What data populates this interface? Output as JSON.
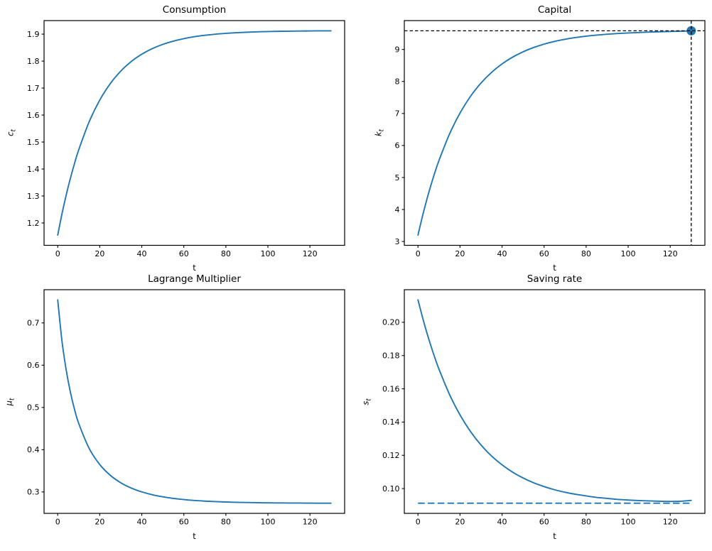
{
  "figure": {
    "background": "#ffffff",
    "layout": "2x2 subplot grid"
  },
  "colors": {
    "line": "#1f77b4",
    "dashed_black": "#000000",
    "text": "#000000",
    "spine": "#000000"
  },
  "chart_data": [
    {
      "id": "consumption",
      "type": "line",
      "title": "Consumption",
      "xlabel": "t",
      "ylabel_main": "c",
      "ylabel_sub": "t",
      "xlim": [
        -6.5,
        136.5
      ],
      "ylim": [
        1.1171,
        1.9502
      ],
      "xticks": [
        0,
        20,
        40,
        60,
        80,
        100,
        120
      ],
      "xtick_labels": [
        "0",
        "20",
        "40",
        "60",
        "80",
        "100",
        "120"
      ],
      "yticks": [
        1.2,
        1.3,
        1.4,
        1.5,
        1.6,
        1.7,
        1.8,
        1.9
      ],
      "ytick_labels": [
        "1.2",
        "1.3",
        "1.4",
        "1.5",
        "1.6",
        "1.7",
        "1.8",
        "1.9"
      ],
      "line_color": "#1f77b4",
      "x": [
        0,
        2,
        4,
        6,
        8,
        10,
        15,
        20,
        25,
        30,
        35,
        40,
        45,
        50,
        55,
        60,
        65,
        70,
        75,
        80,
        85,
        90,
        95,
        100,
        105,
        110,
        115,
        120,
        125,
        130
      ],
      "y": [
        1.155,
        1.2326,
        1.3023,
        1.3648,
        1.4209,
        1.4713,
        1.5758,
        1.6556,
        1.7165,
        1.763,
        1.7985,
        1.8256,
        1.8463,
        1.8621,
        1.8741,
        1.8833,
        1.8904,
        1.8957,
        1.8998,
        1.9029,
        1.9053,
        1.9071,
        1.9085,
        1.9096,
        1.9104,
        1.911,
        1.9115,
        1.9118,
        1.9121,
        1.9123
      ]
    },
    {
      "id": "capital",
      "type": "line",
      "title": "Capital",
      "xlabel": "t",
      "ylabel_main": "k",
      "ylabel_sub": "t",
      "xlim": [
        -6.5,
        136.5
      ],
      "ylim": [
        2.8809,
        9.9011
      ],
      "xticks": [
        0,
        20,
        40,
        60,
        80,
        100,
        120
      ],
      "xtick_labels": [
        "0",
        "20",
        "40",
        "60",
        "80",
        "100",
        "120"
      ],
      "yticks": [
        3,
        4,
        5,
        6,
        7,
        8,
        9
      ],
      "ytick_labels": [
        "3",
        "4",
        "5",
        "6",
        "7",
        "8",
        "9"
      ],
      "line_color": "#1f77b4",
      "x": [
        0,
        2,
        4,
        6,
        8,
        10,
        15,
        20,
        25,
        30,
        35,
        40,
        45,
        50,
        55,
        60,
        65,
        70,
        75,
        80,
        85,
        90,
        95,
        100,
        105,
        110,
        115,
        120,
        125,
        130
      ],
      "y": [
        3.2,
        3.7554,
        4.2627,
        4.7252,
        5.1477,
        5.5333,
        6.3573,
        7.0132,
        7.5359,
        7.952,
        8.2839,
        8.5481,
        8.7587,
        8.9259,
        9.0593,
        9.1659,
        9.2508,
        9.3178,
        9.372,
        9.4148,
        9.4486,
        9.4761,
        9.4971,
        9.5143,
        9.528,
        9.541,
        9.552,
        9.561,
        9.569,
        9.576
      ],
      "hline": {
        "y": 9.582,
        "color": "#000000",
        "style": "dashed",
        "span": "full",
        "z": "above"
      },
      "vline": {
        "x": 130,
        "color": "#000000",
        "style": "dashed",
        "span": "full",
        "z": "above"
      },
      "marker": {
        "x": 130,
        "y": 9.582,
        "color": "#1f77b4",
        "shape": "circle",
        "radius_px": 6.5
      }
    },
    {
      "id": "lagrange-multiplier",
      "type": "line",
      "title": "Lagrange Multiplier",
      "xlabel": "t",
      "ylabel_main": "μ",
      "ylabel_sub": "t",
      "xlim": [
        -6.5,
        136.5
      ],
      "ylim": [
        0.2493,
        0.7786
      ],
      "xticks": [
        0,
        20,
        40,
        60,
        80,
        100,
        120
      ],
      "xtick_labels": [
        "0",
        "20",
        "40",
        "60",
        "80",
        "100",
        "120"
      ],
      "yticks": [
        0.3,
        0.4,
        0.5,
        0.6,
        0.7
      ],
      "ytick_labels": [
        "0.3",
        "0.4",
        "0.5",
        "0.6",
        "0.7"
      ],
      "line_color": "#1f77b4",
      "x": [
        0,
        2,
        4,
        6,
        8,
        10,
        15,
        20,
        25,
        30,
        35,
        40,
        45,
        50,
        55,
        60,
        65,
        70,
        75,
        80,
        85,
        90,
        95,
        100,
        105,
        110,
        115,
        120,
        125,
        130
      ],
      "y": [
        0.7545,
        0.6582,
        0.5897,
        0.5368,
        0.4953,
        0.462,
        0.4027,
        0.3648,
        0.3394,
        0.3217,
        0.3092,
        0.3001,
        0.2933,
        0.2884,
        0.2847,
        0.282,
        0.2798,
        0.2783,
        0.2771,
        0.2762,
        0.2755,
        0.275,
        0.2746,
        0.2742,
        0.274,
        0.2738,
        0.2737,
        0.2735,
        0.2734,
        0.2734
      ]
    },
    {
      "id": "saving-rate",
      "type": "line",
      "title": "Saving rate",
      "xlabel": "t",
      "ylabel_main": "s",
      "ylabel_sub": "t",
      "xlim": [
        -6.5,
        136.5
      ],
      "ylim": [
        0.0851,
        0.2196
      ],
      "xticks": [
        0,
        20,
        40,
        60,
        80,
        100,
        120
      ],
      "xtick_labels": [
        "0",
        "20",
        "40",
        "60",
        "80",
        "100",
        "120"
      ],
      "yticks": [
        0.1,
        0.12,
        0.14,
        0.16,
        0.18,
        0.2
      ],
      "ytick_labels": [
        "0.10",
        "0.12",
        "0.14",
        "0.16",
        "0.18",
        "0.20"
      ],
      "line_color": "#1f77b4",
      "x": [
        0,
        2,
        4,
        6,
        8,
        10,
        15,
        20,
        25,
        30,
        35,
        40,
        45,
        50,
        55,
        60,
        65,
        70,
        75,
        80,
        85,
        90,
        95,
        100,
        105,
        110,
        115,
        120,
        125,
        130
      ],
      "y": [
        0.2135,
        0.2037,
        0.1947,
        0.1864,
        0.1788,
        0.1718,
        0.1566,
        0.1443,
        0.1343,
        0.1262,
        0.1196,
        0.1143,
        0.1099,
        0.1064,
        0.1035,
        0.1012,
        0.0993,
        0.0978,
        0.0966,
        0.0956,
        0.0947,
        0.0941,
        0.0935,
        0.0931,
        0.0928,
        0.0926,
        0.0924,
        0.0923,
        0.0924,
        0.0929
      ],
      "hline": {
        "y": 0.0912,
        "color": "#1f77b4",
        "style": "dashed",
        "span": "data",
        "x_start": 0,
        "x_end": 130,
        "z": "below"
      }
    }
  ]
}
